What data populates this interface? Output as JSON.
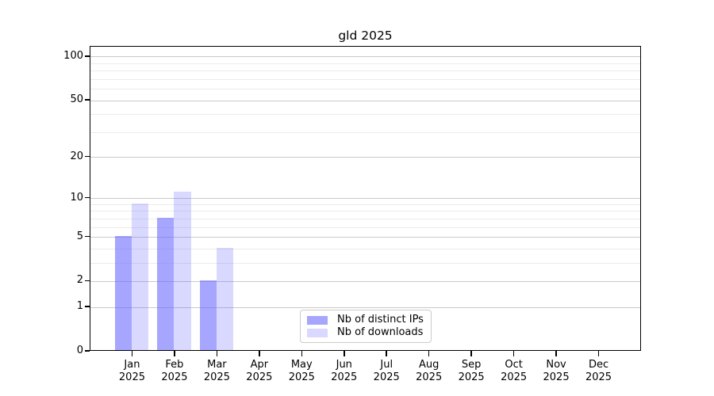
{
  "title": "gld 2025",
  "chart_data": {
    "type": "bar",
    "title": "gld 2025",
    "year": "2025",
    "months": [
      "Jan",
      "Feb",
      "Mar",
      "Apr",
      "May",
      "Jun",
      "Jul",
      "Aug",
      "Sep",
      "Oct",
      "Nov",
      "Dec"
    ],
    "series": [
      {
        "name": "Nb of distinct IPs",
        "color": "#6666ff",
        "alpha": 0.58,
        "values": [
          5,
          7,
          2,
          0,
          0,
          0,
          0,
          0,
          0,
          0,
          0,
          0
        ]
      },
      {
        "name": "Nb of downloads",
        "color": "#6666ff",
        "alpha": 0.25,
        "values": [
          9,
          11,
          4,
          0,
          0,
          0,
          0,
          0,
          0,
          0,
          0,
          0
        ]
      }
    ],
    "yscale": "log1p",
    "ylim": [
      0,
      117.6
    ],
    "yticks_major": [
      0,
      1,
      2,
      5,
      10,
      20,
      50,
      100
    ],
    "yticks_minor": [
      3,
      4,
      6,
      7,
      8,
      9,
      30,
      40,
      60,
      70,
      80,
      90
    ],
    "grid": true,
    "legend_position": "lower center",
    "bar_group_width_fraction": 0.8
  },
  "colors": {
    "background": "#ffffff",
    "spine": "#000000",
    "text": "#000000",
    "grid_major": "#c9c9c9",
    "grid_minor": "#ebebeb",
    "legend_border": "#cccccc"
  }
}
